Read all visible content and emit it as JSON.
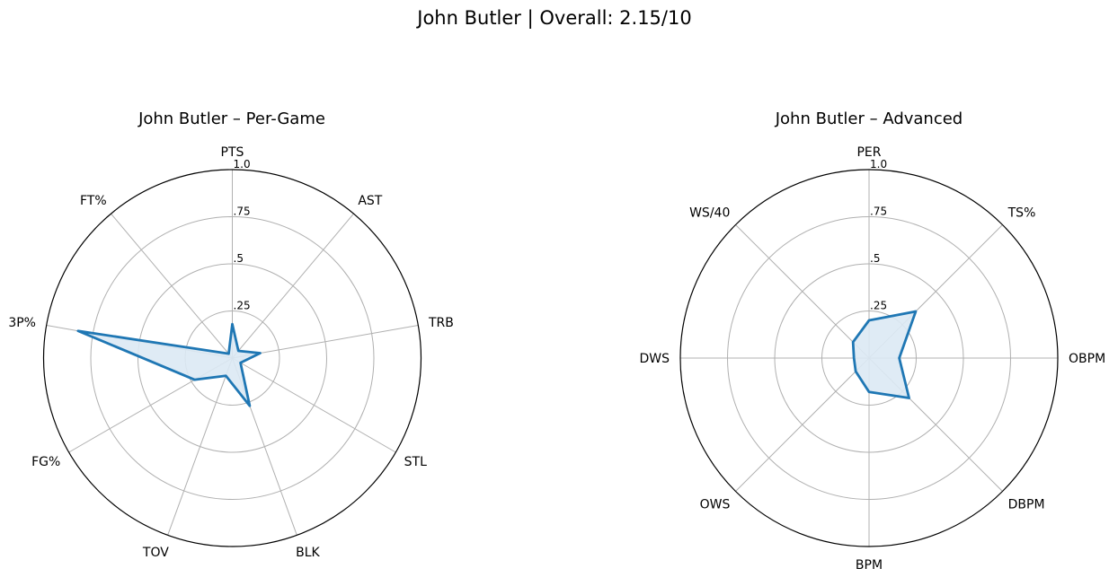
{
  "title": "John Butler | Overall: 2.15/10",
  "chart_data": [
    {
      "type": "radar",
      "title": "John Butler – Per-Game",
      "axes": [
        "PTS",
        "AST",
        "TRB",
        "STL",
        "BLK",
        "TOV",
        "FG%",
        "3P%",
        "FT%"
      ],
      "values": [
        0.18,
        0.05,
        0.15,
        0.05,
        0.27,
        0.1,
        0.23,
        0.83,
        0.03
      ],
      "rticks": [
        0.25,
        0.5,
        0.75,
        1.0
      ],
      "rtick_labels": [
        ".25",
        ".5",
        ".75",
        "1.0"
      ],
      "ylim": [
        0,
        1.0
      ],
      "grid": true,
      "colors": {
        "line": "#1f77b4",
        "fill": "#dce9f4",
        "grid": "#b0b0b0",
        "outer": "#000000"
      }
    },
    {
      "type": "radar",
      "title": "John Butler – Advanced",
      "axes": [
        "PER",
        "TS%",
        "OBPM",
        "DBPM",
        "BPM",
        "OWS",
        "DWS",
        "WS/40"
      ],
      "values": [
        0.2,
        0.35,
        0.16,
        0.3,
        0.18,
        0.1,
        0.08,
        0.12
      ],
      "rticks": [
        0.25,
        0.5,
        0.75,
        1.0
      ],
      "rtick_labels": [
        ".25",
        ".5",
        ".75",
        "1.0"
      ],
      "ylim": [
        0,
        1.0
      ],
      "grid": true,
      "colors": {
        "line": "#1f77b4",
        "fill": "#dce9f4",
        "grid": "#b0b0b0",
        "outer": "#000000"
      }
    }
  ]
}
